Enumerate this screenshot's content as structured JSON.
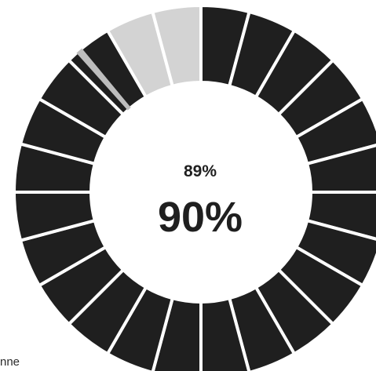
{
  "gauge": {
    "segments_total": 24,
    "secondary_value": "89%",
    "primary_value": "90%",
    "primary_fraction": 0.9,
    "secondary_fraction": 0.89,
    "colors": {
      "filled": "#1f1f1f",
      "empty": "#d3d3d3",
      "gap": "#ffffff",
      "text": "#1f1f1f"
    }
  },
  "footer_fragment": "nne"
}
